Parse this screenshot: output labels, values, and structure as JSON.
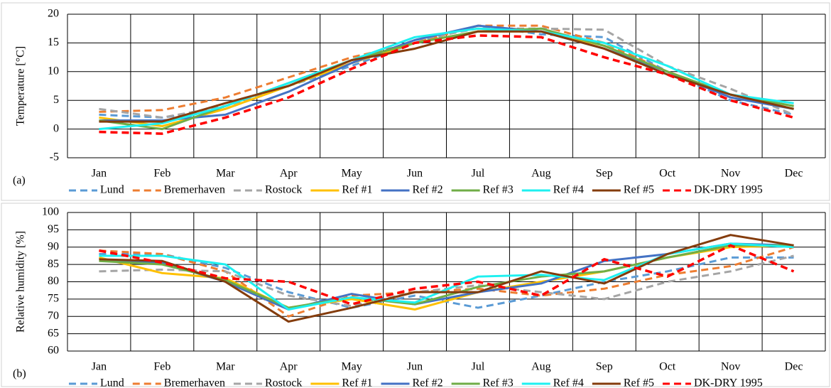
{
  "chart_data": [
    {
      "type": "line",
      "panel_label": "(a)",
      "ylabel": "Temperature [°C]",
      "categories": [
        "Jan",
        "Feb",
        "Mar",
        "Apr",
        "May",
        "Jun",
        "Jul",
        "Aug",
        "Sep",
        "Oct",
        "Nov",
        "Dec"
      ],
      "ylim": [
        -5,
        20
      ],
      "yticks": [
        -5,
        0,
        5,
        10,
        15,
        20
      ],
      "grid": true,
      "series": [
        {
          "name": "Lund",
          "color": "#5b9bd5",
          "dashed": true,
          "values": [
            2.5,
            2.0,
            3.5,
            7.5,
            11,
            15,
            18,
            16.5,
            16,
            10,
            5,
            2.5
          ]
        },
        {
          "name": "Bremerhaven",
          "color": "#ed7d31",
          "dashed": true,
          "values": [
            3,
            3.3,
            5.5,
            9,
            12.5,
            15,
            18,
            18,
            15,
            10,
            6,
            4
          ]
        },
        {
          "name": "Rostock",
          "color": "#a5a5a5",
          "dashed": true,
          "values": [
            3.5,
            2,
            4,
            7.5,
            11.5,
            15.5,
            17.5,
            17.5,
            17.3,
            11,
            7,
            2.5
          ]
        },
        {
          "name": "Ref #1",
          "color": "#ffc000",
          "dashed": false,
          "values": [
            2,
            0.5,
            3.5,
            7.5,
            11.5,
            15,
            17,
            17,
            14.5,
            10,
            6,
            3.5
          ]
        },
        {
          "name": "Ref #2",
          "color": "#4472c4",
          "dashed": false,
          "values": [
            1.5,
            1.5,
            2.5,
            6.5,
            11.5,
            15.5,
            18,
            17,
            14,
            10,
            5.5,
            3.5
          ]
        },
        {
          "name": "Ref #3",
          "color": "#70ad47",
          "dashed": false,
          "values": [
            1.5,
            0,
            4,
            8,
            12,
            15,
            17,
            17.5,
            14.5,
            10,
            6,
            4
          ]
        },
        {
          "name": "Ref #4",
          "color": "#1ef0f0",
          "dashed": false,
          "values": [
            0,
            1,
            4,
            8,
            12,
            16,
            17.5,
            17,
            15,
            11,
            6,
            4.5
          ]
        },
        {
          "name": "Ref #5",
          "color": "#843c0c",
          "dashed": false,
          "values": [
            1.3,
            1.3,
            4.5,
            7.5,
            12,
            14,
            17,
            17,
            14,
            9.5,
            6,
            3.5
          ]
        },
        {
          "name": "DK-DRY 1995",
          "color": "#ff0000",
          "dashed": true,
          "values": [
            -0.5,
            -0.8,
            2,
            5.5,
            10.5,
            15,
            16.3,
            16,
            12.5,
            9.5,
            5,
            2
          ]
        }
      ]
    },
    {
      "type": "line",
      "panel_label": "(b)",
      "ylabel": "Relative humidity [%]",
      "categories": [
        "Jan",
        "Feb",
        "Mar",
        "Apr",
        "May",
        "Jun",
        "Jul",
        "Aug",
        "Sep",
        "Oct",
        "Nov",
        "Dec"
      ],
      "ylim": [
        60,
        100
      ],
      "yticks": [
        60,
        65,
        70,
        75,
        80,
        85,
        90,
        95,
        100
      ],
      "grid": true,
      "series": [
        {
          "name": "Lund",
          "color": "#5b9bd5",
          "dashed": true,
          "values": [
            88,
            88,
            84,
            77,
            72.5,
            76,
            72.5,
            76,
            80,
            83,
            87,
            87
          ]
        },
        {
          "name": "Bremerhaven",
          "color": "#ed7d31",
          "dashed": true,
          "values": [
            89,
            88,
            83,
            70,
            76,
            77,
            78,
            76,
            78,
            82,
            84.5,
            90
          ]
        },
        {
          "name": "Rostock",
          "color": "#a5a5a5",
          "dashed": true,
          "values": [
            83,
            83.5,
            83,
            76,
            73,
            77,
            79,
            77,
            75,
            80,
            83,
            87.5
          ]
        },
        {
          "name": "Ref #1",
          "color": "#ffc000",
          "dashed": false,
          "values": [
            87,
            82.5,
            81,
            72.5,
            75,
            72,
            77,
            80,
            83,
            87,
            90,
            90.5
          ]
        },
        {
          "name": "Ref #2",
          "color": "#4472c4",
          "dashed": false,
          "values": [
            86.5,
            85.5,
            80,
            72,
            76.5,
            73.5,
            77,
            79.5,
            86,
            88,
            91,
            90.5
          ]
        },
        {
          "name": "Ref #3",
          "color": "#70ad47",
          "dashed": false,
          "values": [
            86,
            85,
            80.5,
            72.5,
            75.5,
            73.5,
            78.5,
            81.5,
            83,
            87,
            90.5,
            90.5
          ]
        },
        {
          "name": "Ref #4",
          "color": "#1ef0f0",
          "dashed": false,
          "values": [
            87.5,
            87.5,
            85,
            72,
            75.5,
            74,
            81.5,
            82,
            80.5,
            88,
            91,
            90
          ]
        },
        {
          "name": "Ref #5",
          "color": "#843c0c",
          "dashed": false,
          "values": [
            86.5,
            86,
            80,
            68.5,
            72.5,
            77,
            77,
            83,
            79.5,
            88,
            93.5,
            90.5
          ]
        },
        {
          "name": "DK-DRY 1995",
          "color": "#ff0000",
          "dashed": true,
          "values": [
            89,
            85.5,
            81,
            80,
            73.5,
            78,
            80,
            76,
            86.5,
            81.5,
            90.5,
            83
          ]
        }
      ]
    }
  ]
}
